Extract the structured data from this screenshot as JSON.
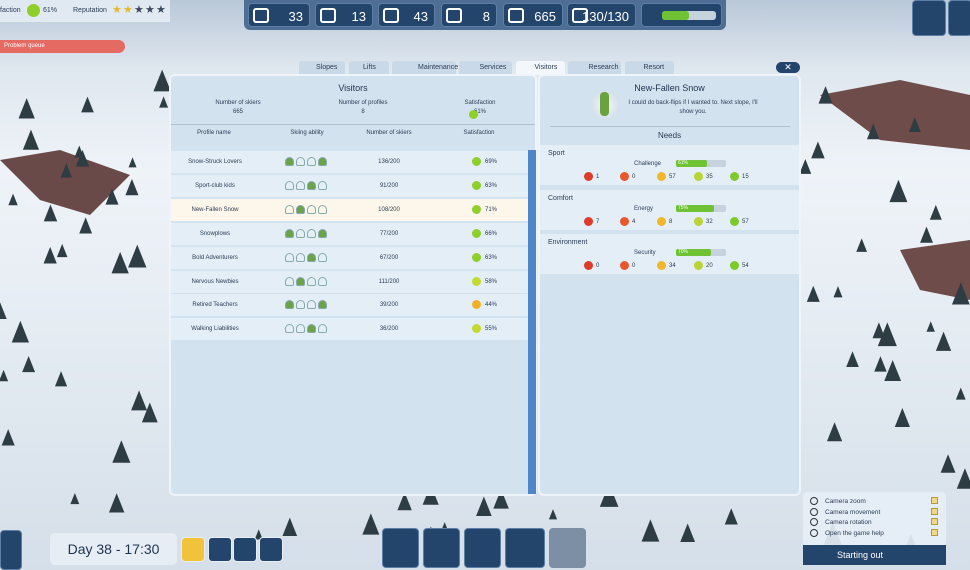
{
  "hud": {
    "satisfaction_label": "faction",
    "satisfaction": "61%",
    "reputation_label": "Reputation",
    "problem_queue": "Problem queue"
  },
  "resources": [
    "33",
    "13",
    "43",
    "8",
    "665",
    "130/130"
  ],
  "tabs": [
    "Slopes",
    "Lifts",
    "Maintenance",
    "Services",
    "Visitors",
    "Research",
    "Resort"
  ],
  "visitors": {
    "title": "Visitors",
    "skiers_label": "Number of skiers",
    "skiers": "665",
    "profiles_label": "Number of profiles",
    "profiles": "8",
    "satisfaction_label": "Satisfaction",
    "satisfaction": "61%",
    "columns": [
      "Profile name",
      "Skiing ability",
      "Number of skiers",
      "Satisfaction"
    ],
    "rows": [
      [
        "Snow-Struck Lovers",
        "136/200",
        "69%"
      ],
      [
        "Sport-club kids",
        "91/200",
        "63%"
      ],
      [
        "New-Fallen Snow",
        "108/200",
        "71%"
      ],
      [
        "Snowplows",
        "77/200",
        "66%"
      ],
      [
        "Bold Adventurers",
        "67/200",
        "63%"
      ],
      [
        "Nervous Newbies",
        "111/200",
        "58%"
      ],
      [
        "Retired Teachers",
        "39/200",
        "44%"
      ],
      [
        "Walking Liabilities",
        "36/200",
        "55%"
      ]
    ]
  },
  "profile": {
    "title": "New-Fallen Snow",
    "quote": "I could do back-flips if I wanted to. Next slope, I'll show you.",
    "needs_title": "Needs",
    "needs": [
      {
        "name": "Sport",
        "stat": "Challenge",
        "percent": "61%",
        "counts": [
          "1",
          "0",
          "57",
          "35",
          "15"
        ]
      },
      {
        "name": "Comfort",
        "stat": "Energy",
        "percent": "75%",
        "counts": [
          "7",
          "4",
          "8",
          "32",
          "57"
        ]
      },
      {
        "name": "Environment",
        "stat": "Security",
        "percent": "70%",
        "counts": [
          "0",
          "0",
          "34",
          "20",
          "54"
        ]
      }
    ]
  },
  "time": "Day 38 - 17:30",
  "help": {
    "items": [
      "Camera zoom",
      "Camera movement",
      "Camera rotation",
      "Open the game help"
    ],
    "title": "Starting out"
  }
}
